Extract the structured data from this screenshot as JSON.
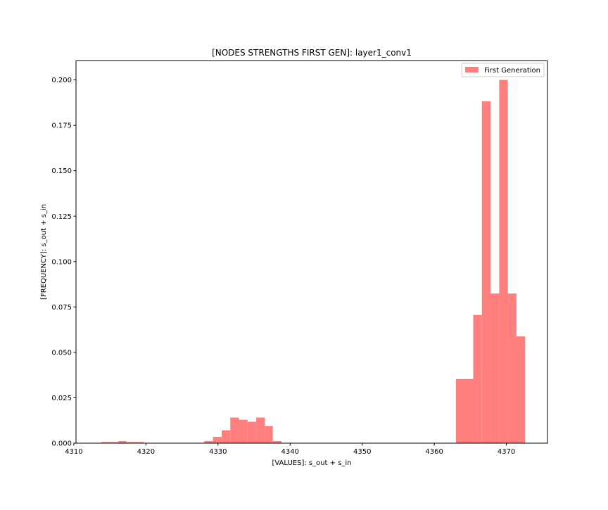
{
  "chart_data": {
    "type": "bar",
    "title": "[NODES STRENGTHS FIRST GEN]: layer1_conv1",
    "xlabel": "[VALUES]: s_out + s_in",
    "ylabel": "[FREQUENCY]: s_out + s_in",
    "xlim": [
      4310.3,
      4375.7
    ],
    "ylim": [
      0,
      0.2105
    ],
    "xticks": [
      4310,
      4320,
      4330,
      4340,
      4350,
      4360,
      4370
    ],
    "yticks": [
      "0.000",
      "0.025",
      "0.050",
      "0.075",
      "0.100",
      "0.125",
      "0.150",
      "0.175",
      "0.200"
    ],
    "grid": false,
    "legend_position": "top-right",
    "series": [
      {
        "name": "First Generation",
        "color": "#ff7f7f",
        "bins": [
          {
            "x0": 4313.8,
            "x1": 4315.0,
            "value": 0.0006
          },
          {
            "x0": 4315.0,
            "x1": 4316.2,
            "value": 0.0006
          },
          {
            "x0": 4316.2,
            "x1": 4317.3,
            "value": 0.0012
          },
          {
            "x0": 4317.3,
            "x1": 4318.5,
            "value": 0.0006
          },
          {
            "x0": 4318.5,
            "x1": 4319.7,
            "value": 0.0006
          },
          {
            "x0": 4328.1,
            "x1": 4329.3,
            "value": 0.0012
          },
          {
            "x0": 4329.3,
            "x1": 4330.5,
            "value": 0.0035
          },
          {
            "x0": 4330.5,
            "x1": 4331.7,
            "value": 0.0071
          },
          {
            "x0": 4331.7,
            "x1": 4332.9,
            "value": 0.0141
          },
          {
            "x0": 4332.9,
            "x1": 4334.1,
            "value": 0.0129
          },
          {
            "x0": 4334.1,
            "x1": 4335.3,
            "value": 0.0118
          },
          {
            "x0": 4335.3,
            "x1": 4336.5,
            "value": 0.0141
          },
          {
            "x0": 4336.5,
            "x1": 4337.6,
            "value": 0.0094
          },
          {
            "x0": 4337.6,
            "x1": 4338.8,
            "value": 0.0012
          },
          {
            "x0": 4363.0,
            "x1": 4365.4,
            "value": 0.0353
          },
          {
            "x0": 4365.4,
            "x1": 4366.6,
            "value": 0.0706
          },
          {
            "x0": 4366.6,
            "x1": 4367.8,
            "value": 0.1882
          },
          {
            "x0": 4367.8,
            "x1": 4369.0,
            "value": 0.0824
          },
          {
            "x0": 4369.0,
            "x1": 4370.2,
            "value": 0.2
          },
          {
            "x0": 4370.2,
            "x1": 4371.4,
            "value": 0.0824
          },
          {
            "x0": 4371.4,
            "x1": 4372.6,
            "value": 0.0588
          }
        ]
      }
    ]
  }
}
